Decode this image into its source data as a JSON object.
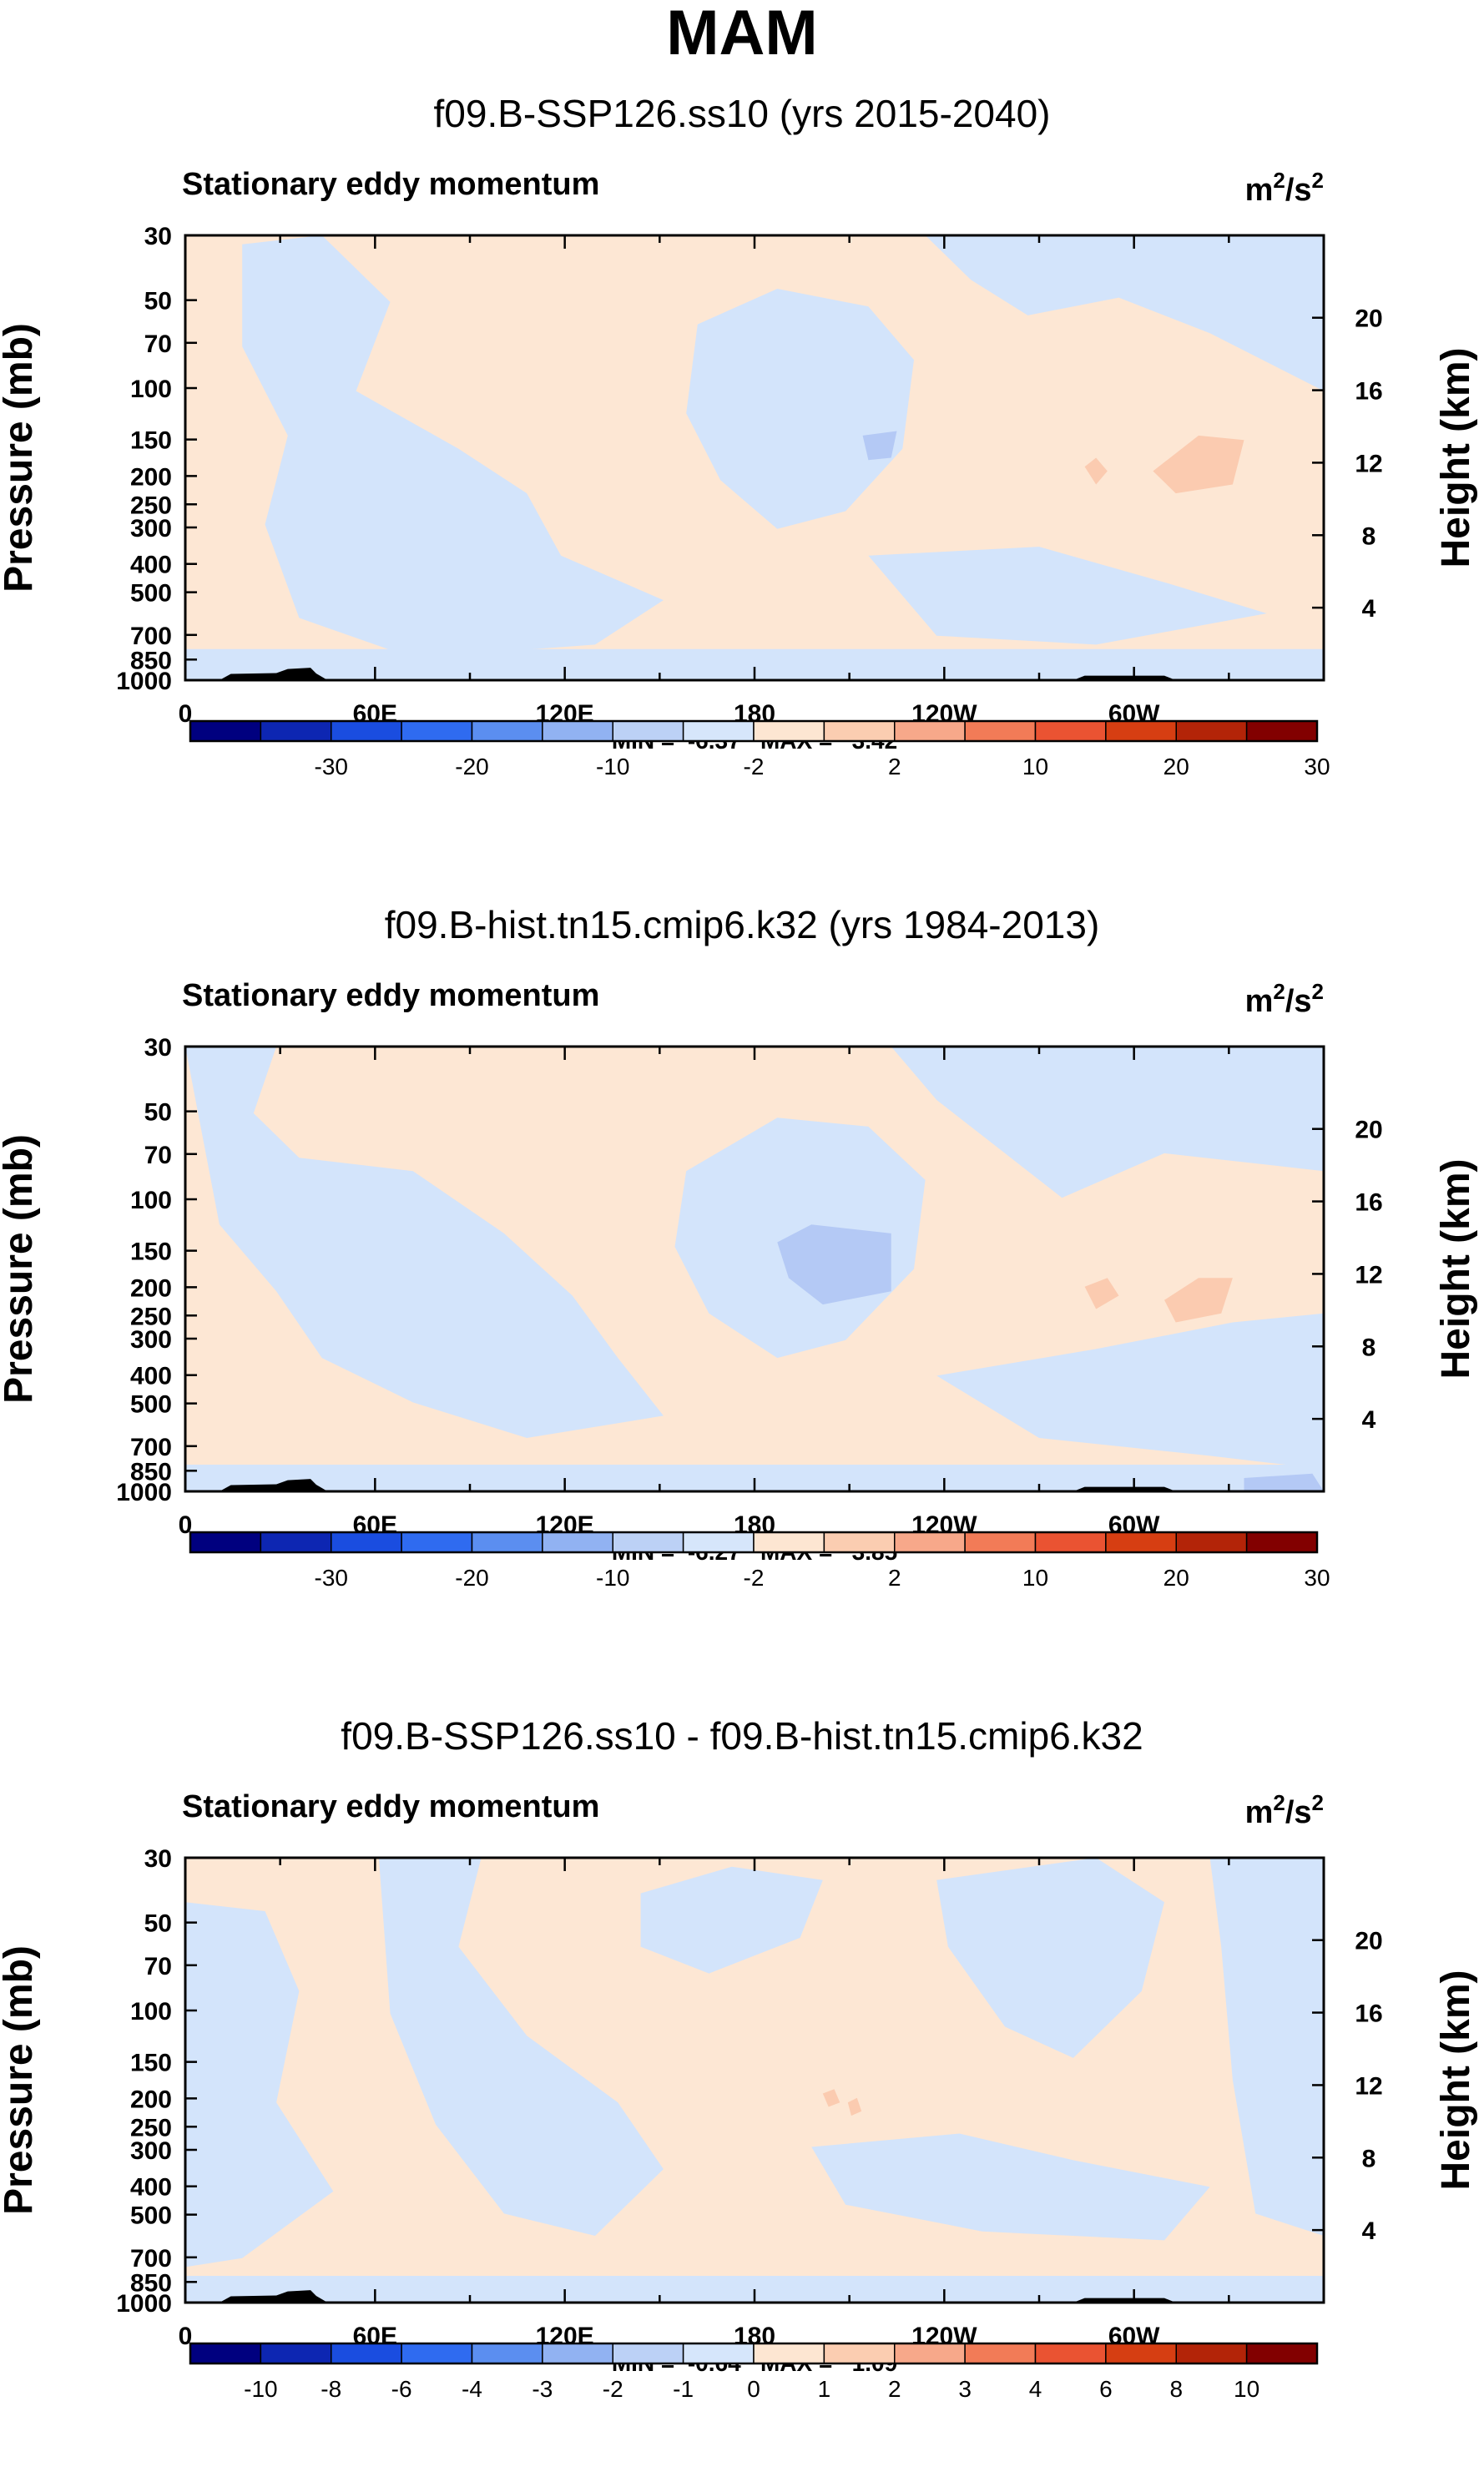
{
  "page_title": "MAM",
  "chart_data": [
    {
      "type": "heatmap",
      "title": "f09.B-SSP126.ss10 (yrs 2015-2040)",
      "subtitle": "Stationary eddy momentum",
      "units_label": {
        "base": "m",
        "exp1": "2",
        "mid": "/s",
        "exp2": "2"
      },
      "ylabel": "Pressure (mb)",
      "ylabel_right": "Height (km)",
      "pressure_ticks": [
        "30",
        "50",
        "70",
        "100",
        "150",
        "200",
        "250",
        "300",
        "400",
        "500",
        "700",
        "850",
        "1000"
      ],
      "pressure_values": [
        30,
        50,
        70,
        100,
        150,
        200,
        250,
        300,
        400,
        500,
        700,
        850,
        1000
      ],
      "height_ticks": [
        "20",
        "16",
        "12",
        "8",
        "4"
      ],
      "height_values": [
        20,
        16,
        12,
        8,
        4
      ],
      "x_ticks": [
        "0",
        "60E",
        "120E",
        "180",
        "120W",
        "60W"
      ],
      "x_values": [
        0,
        60,
        120,
        180,
        240,
        300
      ],
      "x_range": [
        0,
        360
      ],
      "stats_text": "MIN =  -6.37   MAX =   3.42",
      "min": -6.37,
      "max": 3.42,
      "colorbar_labels": [
        "-30",
        "-20",
        "-10",
        "-2",
        "2",
        "10",
        "20",
        "30"
      ],
      "colorbar_colors": [
        "#00007f",
        "#0d26b2",
        "#1a4de0",
        "#2f6bf0",
        "#5b8ef0",
        "#91b2f2",
        "#bcd1f6",
        "#d6e6fb",
        "#fde6d2",
        "#fbcdb1",
        "#f7a88a",
        "#f27b57",
        "#ea5332",
        "#d63e12",
        "#b32408",
        "#820000"
      ],
      "regions": {
        "base": "positive_weak",
        "negative_weak": "light blue",
        "notable": "negative core near 160W at 150-200 mb; positive cores near 60-80W at 200 mb"
      }
    },
    {
      "type": "heatmap",
      "title": "f09.B-hist.tn15.cmip6.k32 (yrs 1984-2013)",
      "subtitle": "Stationary eddy momentum",
      "units_label": {
        "base": "m",
        "exp1": "2",
        "mid": "/s",
        "exp2": "2"
      },
      "ylabel": "Pressure (mb)",
      "ylabel_right": "Height (km)",
      "pressure_ticks": [
        "30",
        "50",
        "70",
        "100",
        "150",
        "200",
        "250",
        "300",
        "400",
        "500",
        "700",
        "850",
        "1000"
      ],
      "pressure_values": [
        30,
        50,
        70,
        100,
        150,
        200,
        250,
        300,
        400,
        500,
        700,
        850,
        1000
      ],
      "height_ticks": [
        "20",
        "16",
        "12",
        "8",
        "4"
      ],
      "height_values": [
        20,
        16,
        12,
        8,
        4
      ],
      "x_ticks": [
        "0",
        "60E",
        "120E",
        "180",
        "120W",
        "60W"
      ],
      "x_values": [
        0,
        60,
        120,
        180,
        240,
        300
      ],
      "x_range": [
        0,
        360
      ],
      "stats_text": "MIN =  -6.27   MAX =   3.85",
      "min": -6.27,
      "max": 3.85,
      "colorbar_labels": [
        "-30",
        "-20",
        "-10",
        "-2",
        "2",
        "10",
        "20",
        "30"
      ],
      "colorbar_colors": [
        "#00007f",
        "#0d26b2",
        "#1a4de0",
        "#2f6bf0",
        "#5b8ef0",
        "#91b2f2",
        "#bcd1f6",
        "#d6e6fb",
        "#fde6d2",
        "#fbcdb1",
        "#f7a88a",
        "#f27b57",
        "#ea5332",
        "#d63e12",
        "#b32408",
        "#820000"
      ],
      "regions": {
        "base": "positive_weak",
        "notable": "negative core near 170W at 150-200 mb; positive cores near 60-80W at 200 mb"
      }
    },
    {
      "type": "heatmap",
      "title": "f09.B-SSP126.ss10 - f09.B-hist.tn15.cmip6.k32",
      "subtitle": "Stationary eddy momentum",
      "units_label": {
        "base": "m",
        "exp1": "2",
        "mid": "/s",
        "exp2": "2"
      },
      "ylabel": "Pressure (mb)",
      "ylabel_right": "Height (km)",
      "pressure_ticks": [
        "30",
        "50",
        "70",
        "100",
        "150",
        "200",
        "250",
        "300",
        "400",
        "500",
        "700",
        "850",
        "1000"
      ],
      "pressure_values": [
        30,
        50,
        70,
        100,
        150,
        200,
        250,
        300,
        400,
        500,
        700,
        850,
        1000
      ],
      "height_ticks": [
        "20",
        "16",
        "12",
        "8",
        "4"
      ],
      "height_values": [
        20,
        16,
        12,
        8,
        4
      ],
      "x_ticks": [
        "0",
        "60E",
        "120E",
        "180",
        "120W",
        "60W"
      ],
      "x_values": [
        0,
        60,
        120,
        180,
        240,
        300
      ],
      "x_range": [
        0,
        360
      ],
      "stats_text": "MIN =  -0.64   MAX =   1.09",
      "min": -0.64,
      "max": 1.09,
      "colorbar_labels": [
        "-10",
        "-8",
        "-6",
        "-4",
        "-3",
        "-2",
        "-1",
        "0",
        "1",
        "2",
        "3",
        "4",
        "6",
        "8",
        "10"
      ],
      "colorbar_colors": [
        "#00007f",
        "#0d26b2",
        "#1a4de0",
        "#2f6bf0",
        "#5b8ef0",
        "#91b2f2",
        "#bcd1f6",
        "#d6e6fb",
        "#fde6d2",
        "#fbcdb1",
        "#f7a88a",
        "#f27b57",
        "#ea5332",
        "#d63e12",
        "#b32408",
        "#820000"
      ],
      "regions": {
        "base": "mixed weak positive and weak negative",
        "notable": "small positive core near 165W at 200 mb"
      }
    }
  ]
}
